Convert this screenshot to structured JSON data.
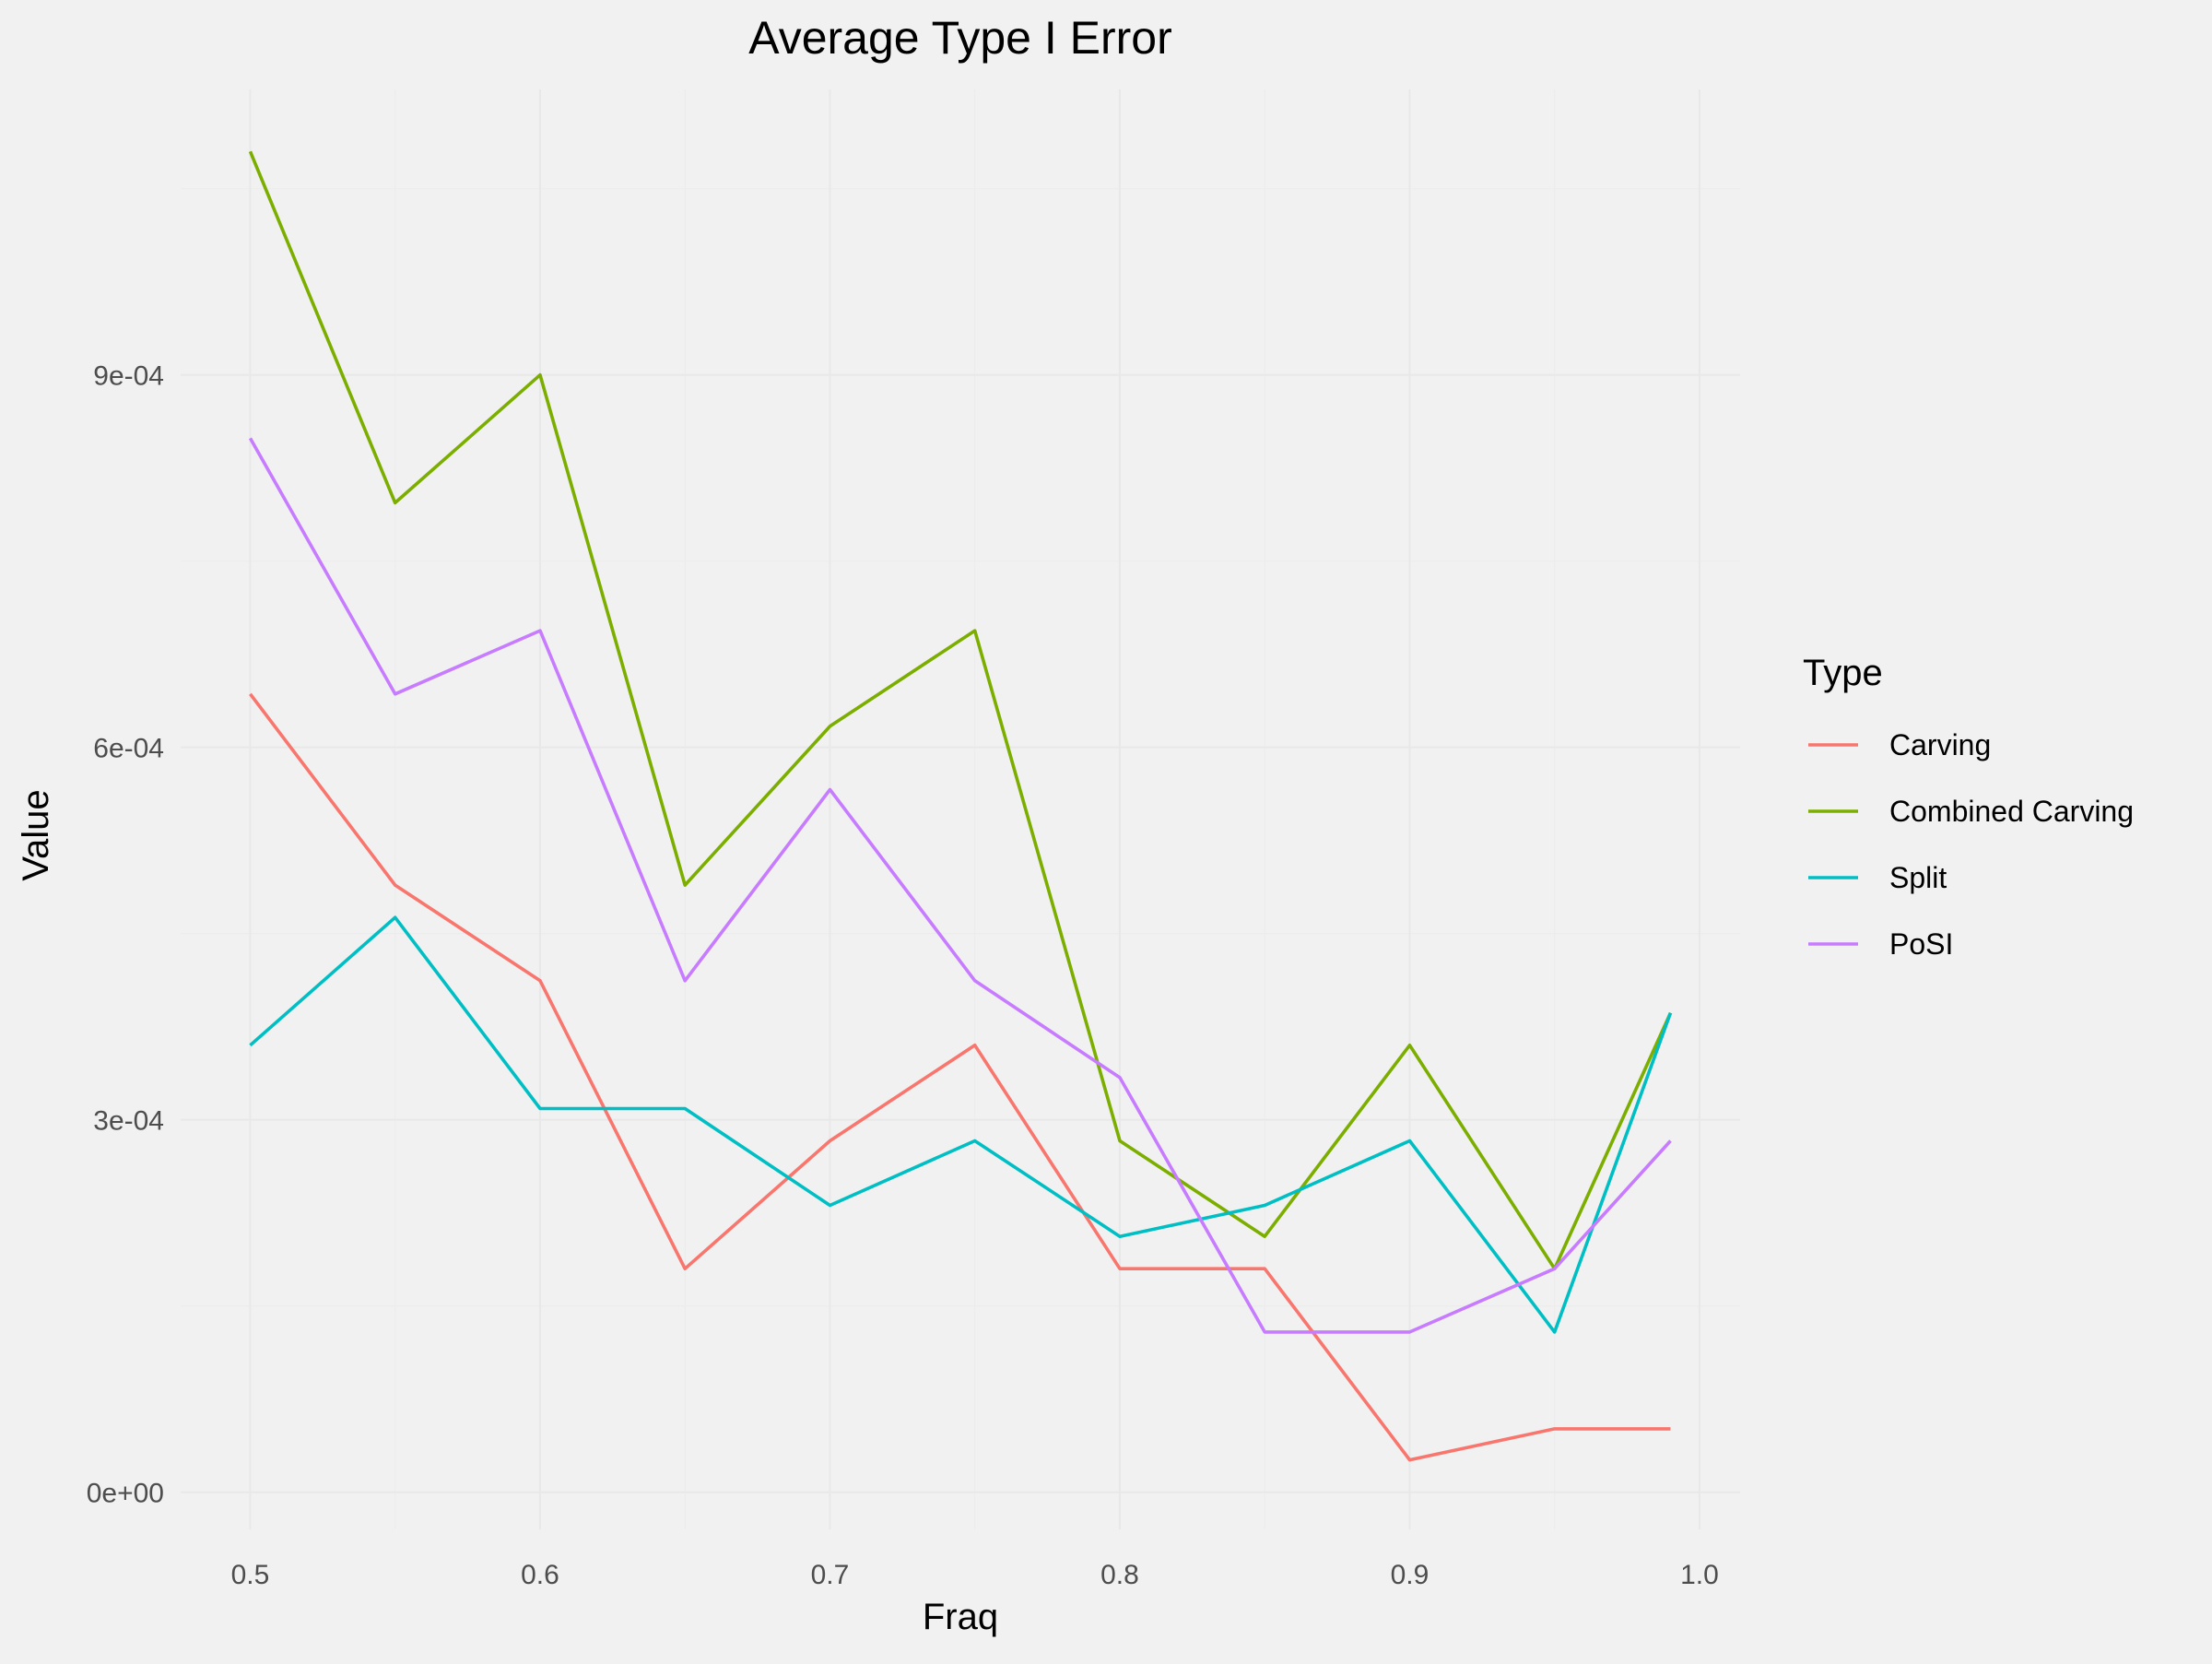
{
  "chart_data": {
    "type": "line",
    "title": "Average Type I Error",
    "xlabel": "Fraq",
    "ylabel": "Value",
    "x": [
      0.5,
      0.55,
      0.6,
      0.65,
      0.7,
      0.75,
      0.8,
      0.85,
      0.9,
      0.95,
      0.99
    ],
    "xlim": [
      0.476,
      1.014
    ],
    "ylim": [
      -3e-05,
      0.00113
    ],
    "x_ticks": [
      0.5,
      0.6,
      0.7,
      0.8,
      0.9,
      1.0
    ],
    "x_tick_labels": [
      "0.5",
      "0.6",
      "0.7",
      "0.8",
      "0.9",
      "1.0"
    ],
    "y_ticks": [
      0,
      0.0003,
      0.0006,
      0.0009
    ],
    "y_tick_labels": [
      "0e+00",
      "3e-04",
      "6e-04",
      "9e-04"
    ],
    "grid": true,
    "legend": {
      "title": "Type",
      "placement": "right"
    },
    "series": [
      {
        "name": "Carving",
        "color": "#F8766D",
        "values": [
          0.000643,
          0.000489,
          0.000412,
          0.00018,
          0.000283,
          0.00036,
          0.00018,
          0.00018,
          2.6e-05,
          5.1e-05,
          5.1e-05
        ]
      },
      {
        "name": "Combined Carving",
        "color": "#7CAE00",
        "values": [
          0.00108,
          0.000797,
          0.0009,
          0.000489,
          0.000617,
          0.000694,
          0.000283,
          0.000206,
          0.00036,
          0.00018,
          0.000386
        ]
      },
      {
        "name": "Split",
        "color": "#00BFC4",
        "values": [
          0.00036,
          0.000463,
          0.000309,
          0.000309,
          0.000231,
          0.000283,
          0.000206,
          0.000231,
          0.000283,
          0.000129,
          0.000386
        ]
      },
      {
        "name": "PoSI",
        "color": "#C77CFF",
        "values": [
          0.000849,
          0.000643,
          0.000694,
          0.000412,
          0.000566,
          0.000412,
          0.000334,
          0.000129,
          0.000129,
          0.00018,
          0.000283
        ]
      }
    ]
  }
}
